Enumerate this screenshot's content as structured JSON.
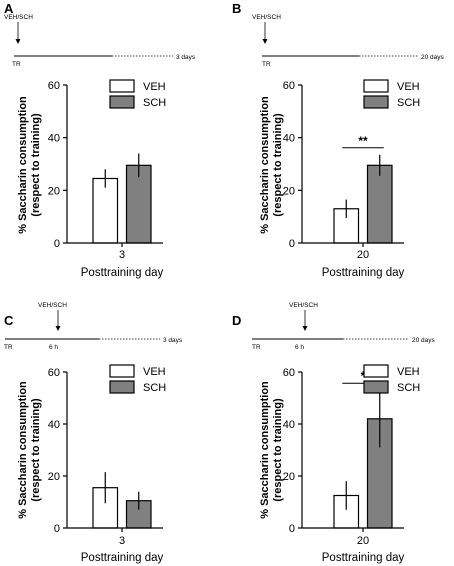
{
  "colors": {
    "veh_fill": "#ffffff",
    "sch_fill": "#808080",
    "stroke": "#000000"
  },
  "chart_data": [
    {
      "type": "bar",
      "panel": "A",
      "timeline": {
        "injection": "VEH/SCH",
        "start": "TR",
        "end": "3 days"
      },
      "categories": [
        "3"
      ],
      "series": [
        {
          "name": "VEH",
          "values": [
            24.5
          ],
          "errors": [
            3.5
          ]
        },
        {
          "name": "SCH",
          "values": [
            29.5
          ],
          "errors": [
            4.5
          ]
        }
      ],
      "xlabel": "Posttraining day",
      "ylabel": "% Saccharin consumption (respect to training)",
      "ylim": [
        0,
        60
      ],
      "yticks": [
        "0",
        "20",
        "40",
        "60"
      ],
      "significance": "",
      "legend": "top-right",
      "grid": false
    },
    {
      "type": "bar",
      "panel": "B",
      "timeline": {
        "injection": "VEH/SCH",
        "start": "TR",
        "end": "20 days"
      },
      "categories": [
        "20"
      ],
      "series": [
        {
          "name": "VEH",
          "values": [
            13
          ],
          "errors": [
            3.5
          ]
        },
        {
          "name": "SCH",
          "values": [
            29.5
          ],
          "errors": [
            4
          ]
        }
      ],
      "xlabel": "Posttraining day",
      "ylabel": "% Saccharin consumption (respect to training)",
      "ylim": [
        0,
        60
      ],
      "yticks": [
        "0",
        "20",
        "40",
        "60"
      ],
      "significance": "**",
      "legend": "top-right",
      "grid": false
    },
    {
      "type": "bar",
      "panel": "C",
      "timeline": {
        "injection": "VEH/SCH",
        "start": "TR",
        "delay": "6 h",
        "end": "3 days"
      },
      "categories": [
        "3"
      ],
      "series": [
        {
          "name": "VEH",
          "values": [
            15.5
          ],
          "errors": [
            6
          ]
        },
        {
          "name": "SCH",
          "values": [
            10.5
          ],
          "errors": [
            3.5
          ]
        }
      ],
      "xlabel": "Posttraining day",
      "ylabel": "% Saccharin consumption (respect to training)",
      "ylim": [
        0,
        60
      ],
      "yticks": [
        "0",
        "20",
        "40",
        "60"
      ],
      "significance": "",
      "legend": "top-right",
      "grid": false
    },
    {
      "type": "bar",
      "panel": "D",
      "timeline": {
        "injection": "VEH/SCH",
        "start": "TR",
        "delay": "6 h",
        "end": "20 days"
      },
      "categories": [
        "20"
      ],
      "series": [
        {
          "name": "VEH",
          "values": [
            12.5
          ],
          "errors": [
            5.5
          ]
        },
        {
          "name": "SCH",
          "values": [
            42
          ],
          "errors": [
            11
          ]
        }
      ],
      "xlabel": "Posttraining day",
      "ylabel": "% Saccharin consumption (respect to training)",
      "ylim": [
        0,
        60
      ],
      "yticks": [
        "0",
        "20",
        "40",
        "60"
      ],
      "significance": "*",
      "legend": "top-right",
      "grid": false
    }
  ]
}
